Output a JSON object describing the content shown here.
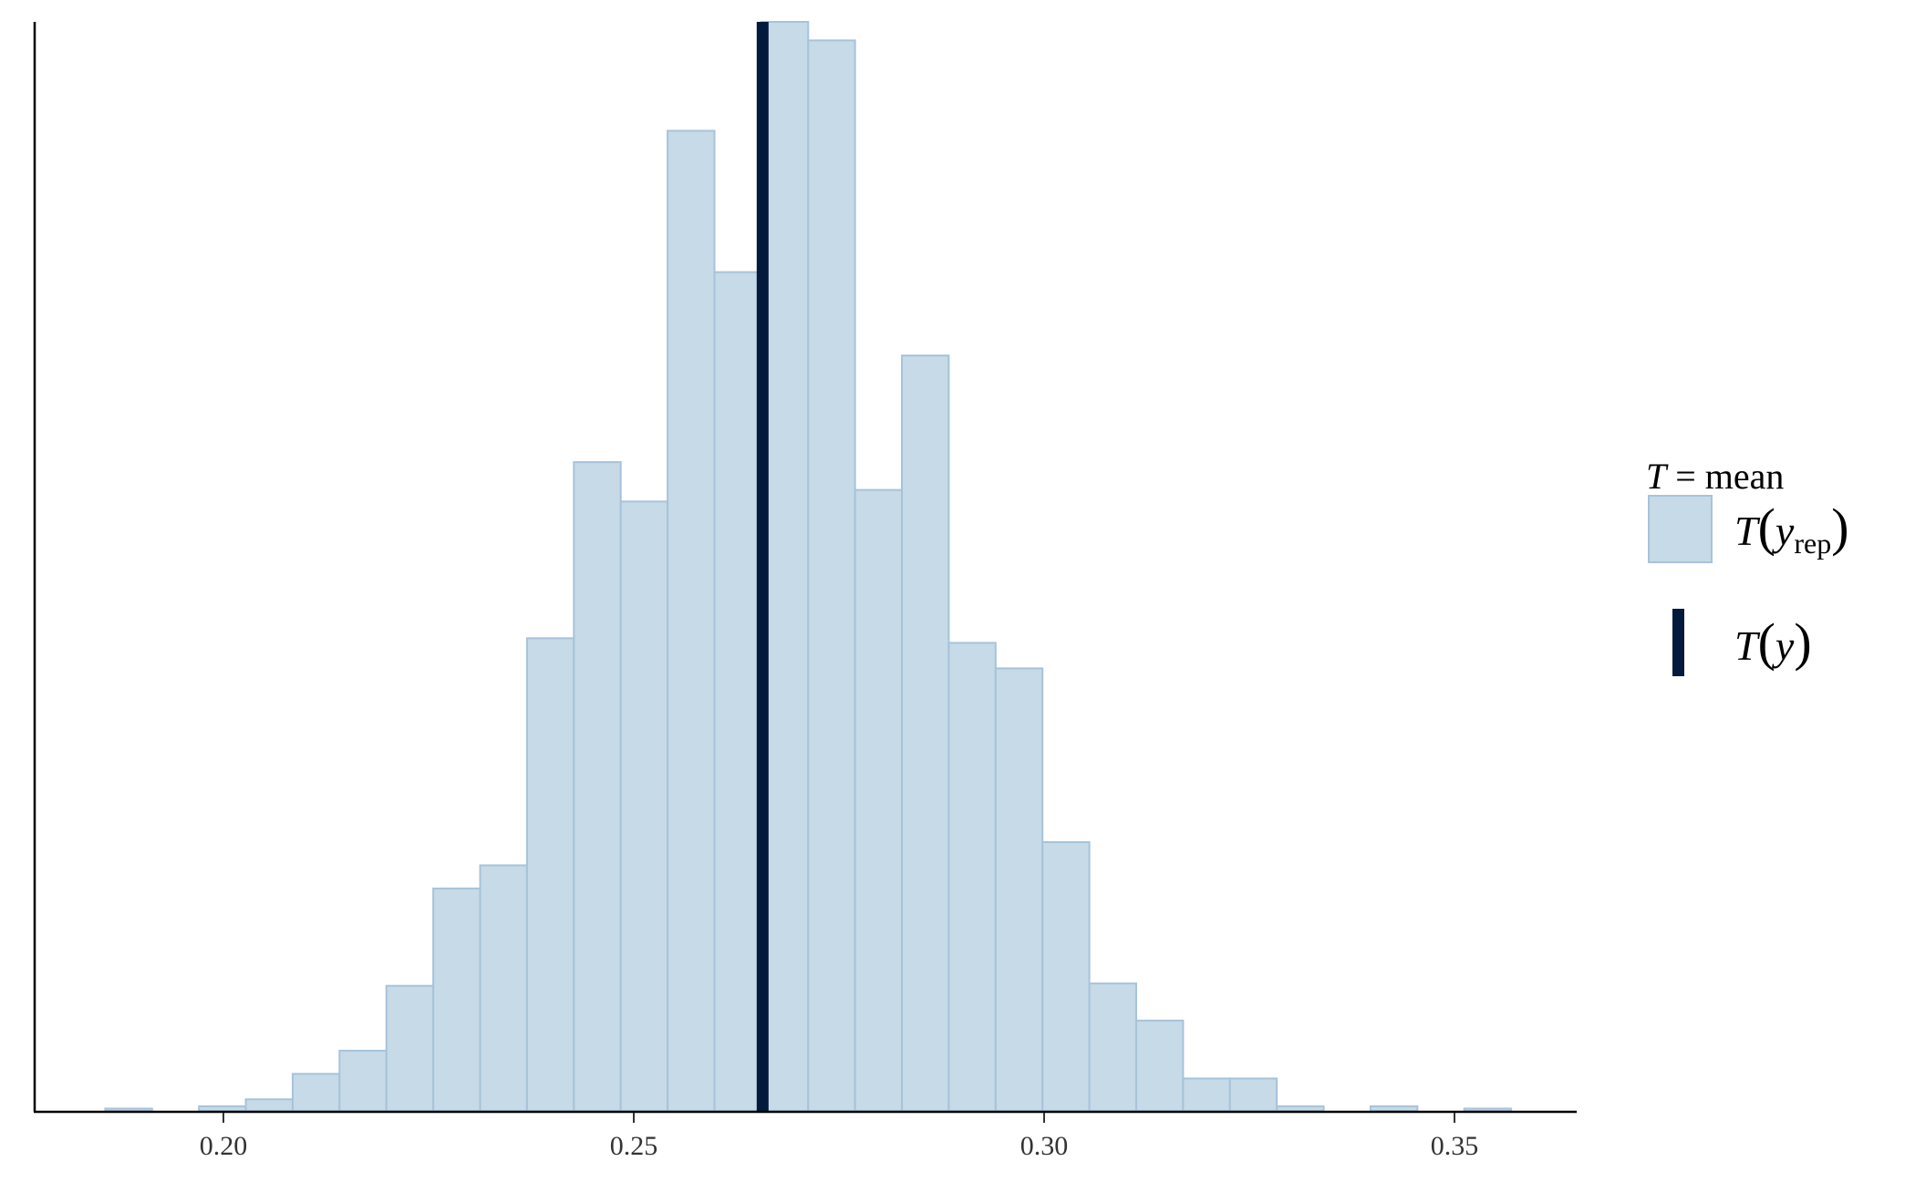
{
  "chart_data": {
    "type": "bar",
    "subtype": "histogram",
    "bin_edges_start": 0.1856,
    "bin_width": 0.00571,
    "counts": [
      1,
      0,
      2,
      5,
      16,
      26,
      54,
      96,
      106,
      204,
      280,
      263,
      423,
      362,
      470,
      462,
      268,
      326,
      202,
      191,
      116,
      55,
      39,
      14,
      14,
      2,
      0,
      2,
      0,
      1
    ],
    "observed_stat": 0.2657,
    "x_ticks": [
      0.2,
      0.25,
      0.3,
      0.35
    ],
    "x_tick_labels": [
      "0.20",
      "0.25",
      "0.30",
      "0.35"
    ],
    "xlim": [
      0.1773,
      0.3646
    ],
    "ylim": [
      0,
      470
    ],
    "y_axis_labels_shown": false,
    "grid": false,
    "legend_position": "right",
    "legend": {
      "title_T": "T",
      "title_rest": " = mean",
      "items": [
        {
          "T": "T",
          "open": "(",
          "var": "y",
          "sub": "rep",
          "close": ")",
          "kind": "histogram"
        },
        {
          "T": "T",
          "open": "(",
          "var": "y",
          "sub": "",
          "close": ")",
          "kind": "vertical-line"
        }
      ]
    },
    "colors": {
      "bar_fill": "#c6dae7",
      "bar_stroke": "#a7c3da",
      "line": "#031a3d",
      "axis": "#000000"
    }
  }
}
